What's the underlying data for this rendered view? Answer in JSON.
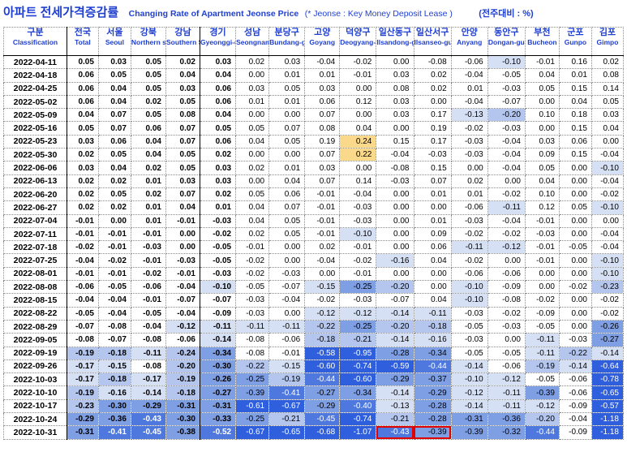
{
  "title": {
    "korean": "아파트 전세가격증감률",
    "english": "Changing Rate of Apartment Jeonse Price",
    "note": "(* Jeonse : Key Money Deposit Lease )",
    "unit": "(전주대비 : %)"
  },
  "colors": {
    "header_text": "#1f3fd0",
    "highlight_border": "#e00000",
    "positive_highlight": "#fbd98a",
    "negative_scale": [
      "#d6e0f5",
      "#b4c6ee",
      "#7f9fe4",
      "#4f78de",
      "#2f5fdc"
    ]
  },
  "chart_data": {
    "type": "table",
    "columns": [
      {
        "ko": "구분",
        "en": "Classification"
      },
      {
        "ko": "전국",
        "en": "Total"
      },
      {
        "ko": "서울",
        "en": "Seoul"
      },
      {
        "ko": "강북",
        "en": "Northern seoul"
      },
      {
        "ko": "강남",
        "en": "Southern Seoul"
      },
      {
        "ko": "경기",
        "en": "Gyeonggi-do"
      },
      {
        "ko": "성남",
        "en": "Seongnam"
      },
      {
        "ko": "분당구",
        "en": "Bundang-gu"
      },
      {
        "ko": "고양",
        "en": "Goyang"
      },
      {
        "ko": "덕양구",
        "en": "Deogyang-gu"
      },
      {
        "ko": "일산동구",
        "en": "Ilsandong-gu"
      },
      {
        "ko": "일산서구",
        "en": "Ilsanseo-gu"
      },
      {
        "ko": "안양",
        "en": "Anyang"
      },
      {
        "ko": "동안구",
        "en": "Dongan-gu"
      },
      {
        "ko": "부천",
        "en": "Bucheon"
      },
      {
        "ko": "군포",
        "en": "Gunpo"
      },
      {
        "ko": "김포",
        "en": "Gimpo"
      }
    ],
    "rows": [
      {
        "date": "2022-04-11",
        "values": [
          "0.05",
          "0.03",
          "0.05",
          "0.02",
          "0.03",
          "0.02",
          "0.03",
          "-0.04",
          "-0.02",
          "0.00",
          "-0.08",
          "-0.06",
          "-0.10",
          "-0.01",
          "0.16",
          "0.02"
        ]
      },
      {
        "date": "2022-04-18",
        "values": [
          "0.06",
          "0.05",
          "0.05",
          "0.04",
          "0.04",
          "0.00",
          "0.01",
          "0.01",
          "-0.01",
          "0.03",
          "0.02",
          "-0.04",
          "-0.05",
          "0.04",
          "0.01",
          "0.08"
        ]
      },
      {
        "date": "2022-04-25",
        "values": [
          "0.06",
          "0.04",
          "0.05",
          "0.03",
          "0.06",
          "0.03",
          "0.05",
          "0.03",
          "0.00",
          "0.08",
          "0.02",
          "0.01",
          "-0.03",
          "0.05",
          "0.15",
          "0.14"
        ]
      },
      {
        "date": "2022-05-02",
        "values": [
          "0.06",
          "0.04",
          "0.02",
          "0.05",
          "0.06",
          "0.01",
          "0.01",
          "0.06",
          "0.12",
          "0.03",
          "0.00",
          "-0.04",
          "-0.07",
          "0.00",
          "0.04",
          "0.05"
        ]
      },
      {
        "date": "2022-05-09",
        "values": [
          "0.04",
          "0.07",
          "0.05",
          "0.08",
          "0.04",
          "0.00",
          "0.00",
          "0.07",
          "0.00",
          "0.03",
          "0.17",
          "-0.13",
          "-0.20",
          "0.10",
          "0.18",
          "0.03"
        ]
      },
      {
        "date": "2022-05-16",
        "values": [
          "0.05",
          "0.07",
          "0.06",
          "0.07",
          "0.05",
          "0.05",
          "0.07",
          "0.08",
          "0.04",
          "0.00",
          "0.19",
          "-0.02",
          "-0.03",
          "0.00",
          "0.15",
          "0.04"
        ]
      },
      {
        "date": "2022-05-23",
        "values": [
          "0.03",
          "0.06",
          "0.04",
          "0.07",
          "0.06",
          "0.04",
          "0.05",
          "0.19",
          "0.24",
          "0.15",
          "0.17",
          "-0.03",
          "-0.04",
          "0.03",
          "0.06",
          "0.00"
        ]
      },
      {
        "date": "2022-05-30",
        "values": [
          "0.02",
          "0.05",
          "0.04",
          "0.05",
          "0.02",
          "0.00",
          "0.00",
          "0.07",
          "0.22",
          "-0.04",
          "-0.03",
          "-0.03",
          "-0.04",
          "0.09",
          "0.15",
          "-0.04"
        ]
      },
      {
        "date": "2022-06-06",
        "values": [
          "0.03",
          "0.04",
          "0.02",
          "0.05",
          "0.03",
          "0.02",
          "0.01",
          "0.03",
          "0.00",
          "-0.08",
          "0.15",
          "0.00",
          "-0.04",
          "0.05",
          "0.00",
          "-0.10"
        ]
      },
      {
        "date": "2022-06-13",
        "values": [
          "0.02",
          "0.02",
          "0.01",
          "0.03",
          "0.03",
          "0.00",
          "0.04",
          "0.07",
          "0.14",
          "-0.03",
          "0.07",
          "0.02",
          "0.00",
          "0.04",
          "0.00",
          "-0.04"
        ]
      },
      {
        "date": "2022-06-20",
        "values": [
          "0.02",
          "0.05",
          "0.02",
          "0.07",
          "0.02",
          "0.05",
          "0.06",
          "-0.01",
          "-0.04",
          "0.00",
          "0.01",
          "0.01",
          "-0.02",
          "0.10",
          "0.00",
          "-0.02"
        ]
      },
      {
        "date": "2022-06-27",
        "values": [
          "0.02",
          "0.02",
          "0.01",
          "0.04",
          "0.01",
          "0.04",
          "0.07",
          "-0.01",
          "-0.03",
          "0.00",
          "0.00",
          "-0.06",
          "-0.11",
          "0.12",
          "0.05",
          "-0.10"
        ]
      },
      {
        "date": "2022-07-04",
        "values": [
          "-0.01",
          "0.00",
          "0.01",
          "-0.01",
          "-0.03",
          "0.04",
          "0.05",
          "-0.01",
          "-0.03",
          "0.00",
          "0.01",
          "-0.03",
          "-0.04",
          "-0.01",
          "0.00",
          "0.00"
        ]
      },
      {
        "date": "2022-07-11",
        "values": [
          "-0.01",
          "-0.01",
          "-0.01",
          "0.00",
          "-0.02",
          "0.02",
          "0.05",
          "-0.01",
          "-0.10",
          "0.00",
          "0.09",
          "-0.02",
          "-0.02",
          "-0.03",
          "0.00",
          "-0.04"
        ]
      },
      {
        "date": "2022-07-18",
        "values": [
          "-0.02",
          "-0.01",
          "-0.03",
          "0.00",
          "-0.05",
          "-0.01",
          "0.00",
          "0.02",
          "-0.01",
          "0.00",
          "0.06",
          "-0.11",
          "-0.12",
          "-0.01",
          "-0.05",
          "-0.04"
        ]
      },
      {
        "date": "2022-07-25",
        "values": [
          "-0.04",
          "-0.02",
          "-0.01",
          "-0.03",
          "-0.05",
          "-0.02",
          "0.00",
          "-0.04",
          "-0.02",
          "-0.16",
          "0.04",
          "-0.02",
          "0.00",
          "-0.01",
          "0.00",
          "-0.10"
        ]
      },
      {
        "date": "2022-08-01",
        "values": [
          "-0.01",
          "-0.01",
          "-0.02",
          "-0.01",
          "-0.03",
          "-0.02",
          "-0.03",
          "0.00",
          "-0.01",
          "0.00",
          "0.00",
          "-0.06",
          "-0.06",
          "0.00",
          "0.00",
          "-0.10"
        ]
      },
      {
        "date": "2022-08-08",
        "values": [
          "-0.06",
          "-0.05",
          "-0.06",
          "-0.04",
          "-0.10",
          "-0.05",
          "-0.07",
          "-0.15",
          "-0.25",
          "-0.20",
          "0.00",
          "-0.10",
          "-0.09",
          "0.00",
          "-0.02",
          "-0.23"
        ]
      },
      {
        "date": "2022-08-15",
        "values": [
          "-0.04",
          "-0.04",
          "-0.01",
          "-0.07",
          "-0.07",
          "-0.03",
          "-0.04",
          "-0.02",
          "-0.03",
          "-0.07",
          "0.04",
          "-0.10",
          "-0.08",
          "-0.02",
          "0.00",
          "-0.02"
        ]
      },
      {
        "date": "2022-08-22",
        "values": [
          "-0.05",
          "-0.04",
          "-0.05",
          "-0.04",
          "-0.09",
          "-0.03",
          "0.00",
          "-0.12",
          "-0.12",
          "-0.14",
          "-0.11",
          "-0.03",
          "-0.02",
          "-0.09",
          "0.00",
          "-0.02"
        ]
      },
      {
        "date": "2022-08-29",
        "values": [
          "-0.07",
          "-0.08",
          "-0.04",
          "-0.12",
          "-0.11",
          "-0.11",
          "-0.11",
          "-0.22",
          "-0.25",
          "-0.20",
          "-0.18",
          "-0.05",
          "-0.03",
          "-0.05",
          "0.00",
          "-0.26"
        ]
      },
      {
        "date": "2022-09-05",
        "values": [
          "-0.08",
          "-0.07",
          "-0.08",
          "-0.06",
          "-0.14",
          "-0.08",
          "-0.06",
          "-0.18",
          "-0.21",
          "-0.14",
          "-0.16",
          "-0.03",
          "0.00",
          "-0.11",
          "-0.03",
          "-0.27"
        ]
      },
      {
        "date": "2022-09-19",
        "values": [
          "-0.19",
          "-0.18",
          "-0.11",
          "-0.24",
          "-0.34",
          "-0.08",
          "-0.01",
          "-0.58",
          "-0.95",
          "-0.28",
          "-0.34",
          "-0.05",
          "-0.05",
          "-0.11",
          "-0.22",
          "-0.14"
        ]
      },
      {
        "date": "2022-09-26",
        "values": [
          "-0.17",
          "-0.15",
          "-0.08",
          "-0.20",
          "-0.30",
          "-0.22",
          "-0.15",
          "-0.60",
          "-0.74",
          "-0.59",
          "-0.44",
          "-0.14",
          "-0.06",
          "-0.19",
          "-0.14",
          "-0.64"
        ]
      },
      {
        "date": "2022-10-03",
        "values": [
          "-0.17",
          "-0.18",
          "-0.17",
          "-0.19",
          "-0.26",
          "-0.25",
          "-0.19",
          "-0.44",
          "-0.60",
          "-0.29",
          "-0.37",
          "-0.10",
          "-0.12",
          "-0.05",
          "-0.06",
          "-0.78"
        ]
      },
      {
        "date": "2022-10-10",
        "values": [
          "-0.19",
          "-0.16",
          "-0.14",
          "-0.18",
          "-0.27",
          "-0.39",
          "-0.41",
          "-0.27",
          "-0.34",
          "-0.14",
          "-0.29",
          "-0.12",
          "-0.11",
          "-0.39",
          "-0.06",
          "-0.65"
        ]
      },
      {
        "date": "2022-10-17",
        "values": [
          "-0.23",
          "-0.30",
          "-0.29",
          "-0.31",
          "-0.31",
          "-0.61",
          "-0.67",
          "-0.29",
          "-0.40",
          "-0.13",
          "-0.28",
          "-0.14",
          "-0.11",
          "-0.12",
          "-0.09",
          "-0.57"
        ]
      },
      {
        "date": "2022-10-24",
        "values": [
          "-0.29",
          "-0.36",
          "-0.43",
          "-0.30",
          "-0.33",
          "-0.25",
          "-0.21",
          "-0.45",
          "-0.74",
          "-0.21",
          "-0.28",
          "-0.31",
          "-0.36",
          "-0.20",
          "-0.04",
          "-1.18"
        ]
      },
      {
        "date": "2022-10-31",
        "values": [
          "-0.31",
          "-0.41",
          "-0.45",
          "-0.38",
          "-0.52",
          "-0.67",
          "-0.65",
          "-0.68",
          "-1.07",
          "-0.43",
          "-0.39",
          "-0.39",
          "-0.32",
          "-0.44",
          "-0.09",
          "-1.18"
        ]
      }
    ],
    "highlighted_cells": [
      {
        "date": "2022-10-31",
        "column": "Ilsandong-gu"
      },
      {
        "date": "2022-10-31",
        "column": "Ilsanseo-gu"
      }
    ]
  }
}
